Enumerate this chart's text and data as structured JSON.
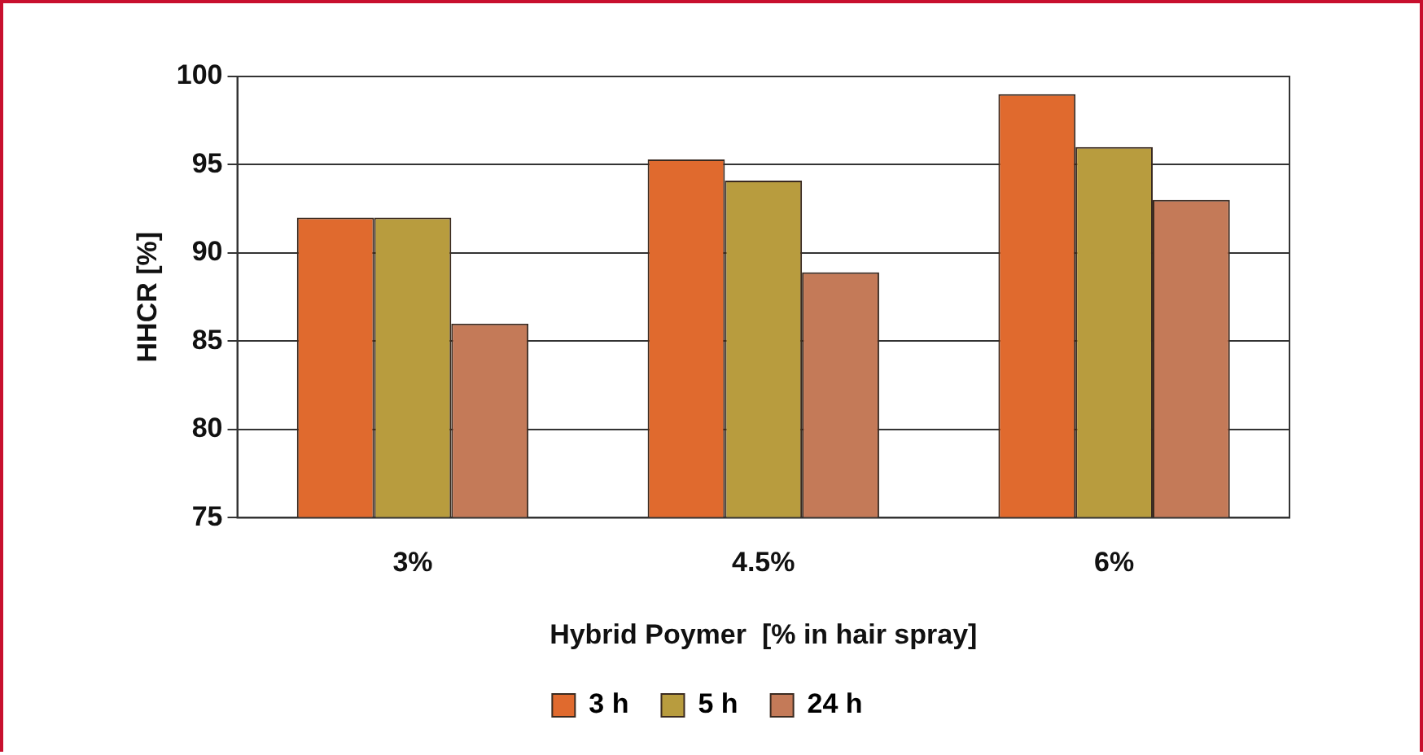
{
  "chart_data": {
    "type": "bar",
    "xlabel": "Hybrid Poymer  [% in hair spray]",
    "ylabel": "HHCR [%]",
    "categories": [
      "3%",
      "4.5%",
      "6%"
    ],
    "series": [
      {
        "name": "3 h",
        "color": "#e06a2e",
        "values": [
          92,
          95.3,
          99
        ]
      },
      {
        "name": "5 h",
        "color": "#b89c3e",
        "values": [
          92,
          94.1,
          96
        ]
      },
      {
        "name": "24 h",
        "color": "#c47a58",
        "values": [
          86,
          88.9,
          93
        ]
      }
    ],
    "ylim": [
      75,
      100
    ],
    "yticks": [
      75,
      80,
      85,
      90,
      95,
      100
    ],
    "grid": "y",
    "legend": "bottom"
  }
}
